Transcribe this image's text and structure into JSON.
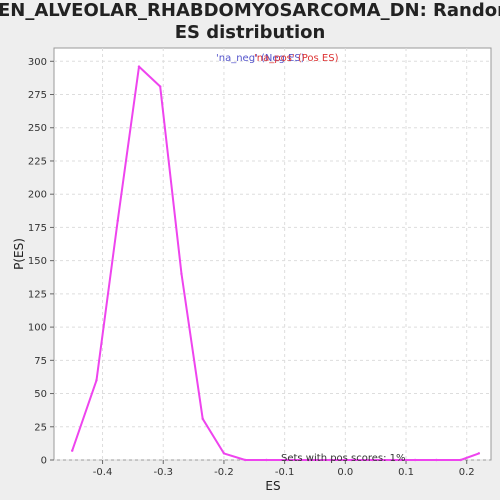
{
  "chart_data": {
    "type": "line",
    "title_line1": "REN_ALVEOLAR_RHABDOMYOSARCOMA_DN: Random",
    "title_line2": "ES distribution",
    "xlabel": "ES",
    "ylabel": "P(ES)",
    "xlim": [
      -0.48,
      0.24
    ],
    "ylim": [
      0,
      310
    ],
    "x_ticks": [
      -0.4,
      -0.3,
      -0.2,
      -0.1,
      0.0,
      0.1,
      0.2
    ],
    "x_tick_labels": [
      "-0.4",
      "-0.3",
      "-0.2",
      "-0.1",
      "0.0",
      "0.1",
      "0.2"
    ],
    "y_ticks": [
      0,
      25,
      50,
      75,
      100,
      125,
      150,
      175,
      200,
      225,
      250,
      275,
      300
    ],
    "y_tick_labels": [
      "0",
      "25",
      "50",
      "75",
      "100",
      "125",
      "150",
      "175",
      "200",
      "225",
      "250",
      "275",
      "300"
    ],
    "grid": true,
    "legend_position": "top-center",
    "legend": [
      {
        "label": "'na_neg' (Neg ES)",
        "color": "#5555cc"
      },
      {
        "label": "'na_pos' (Pos ES)",
        "color": "#dd3333"
      }
    ],
    "annotation": "Sets with pos scores: 1%",
    "series": [
      {
        "color": "#ee44ee",
        "x": [
          -0.45,
          -0.41,
          -0.375,
          -0.34,
          -0.305,
          -0.27,
          -0.235,
          -0.2,
          -0.165,
          -0.13,
          -0.095,
          -0.06,
          -0.025,
          0.01,
          0.045,
          0.08,
          0.115,
          0.15,
          0.19,
          0.22
        ],
        "y": [
          7,
          60,
          180,
          296,
          281,
          140,
          31,
          5,
          0,
          0,
          0,
          0,
          0,
          0,
          0,
          0,
          0,
          0,
          0,
          5
        ]
      }
    ]
  }
}
